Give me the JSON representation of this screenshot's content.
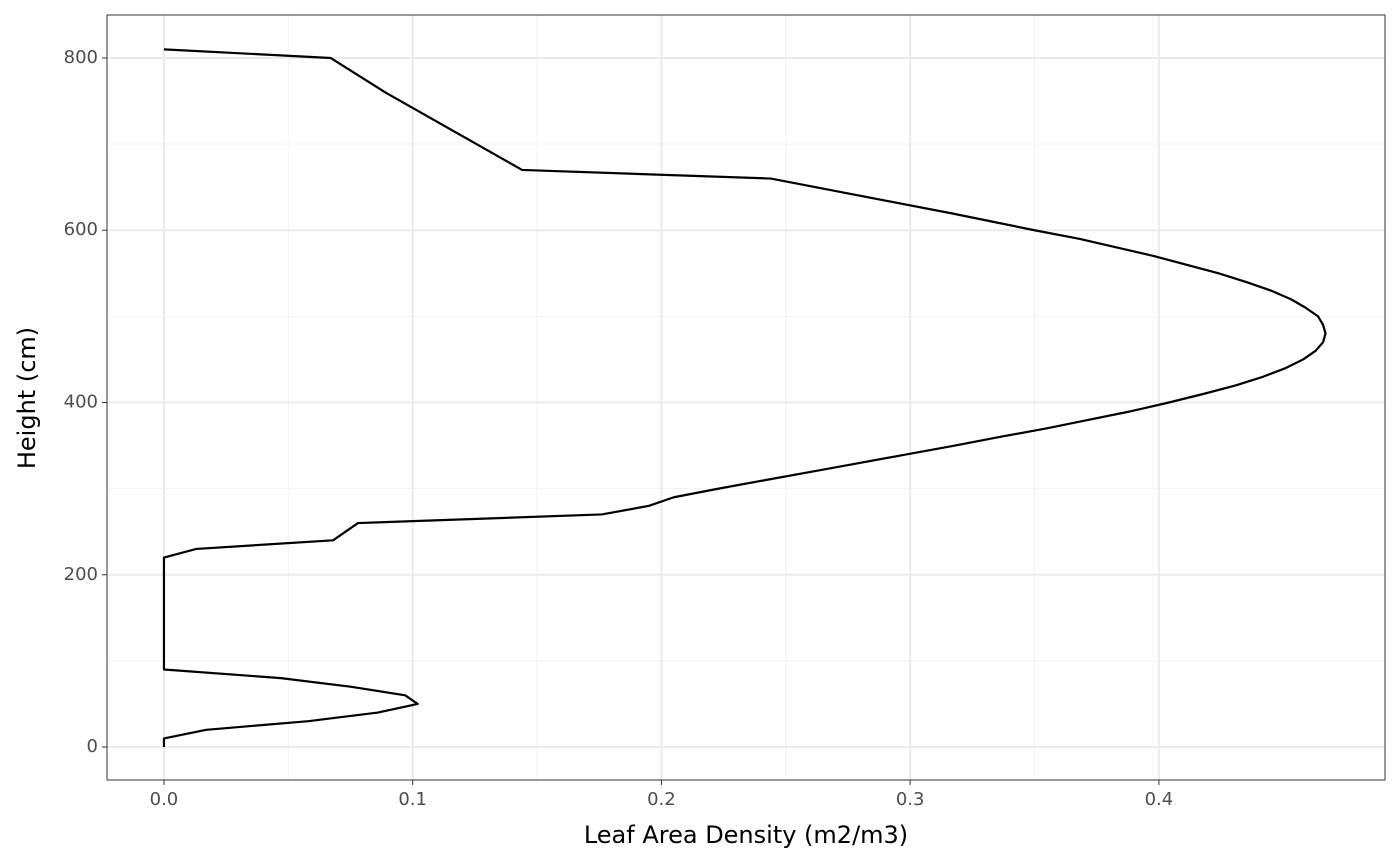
{
  "chart_data": {
    "type": "line",
    "x_label": "Leaf Area Density (m2/m3)",
    "y_label": "Height (cm)",
    "x": [
      0,
      0,
      0.017,
      0.058,
      0.086,
      0.102,
      0.097,
      0.075,
      0.047,
      0,
      0,
      0,
      0,
      0,
      0,
      0,
      0,
      0,
      0,
      0,
      0,
      0,
      0,
      0.013,
      0.068,
      0.078,
      0.176,
      0.195,
      0.205,
      0.223,
      0.242,
      0.261,
      0.28,
      0.299,
      0.318,
      0.336,
      0.355,
      0.372,
      0.389,
      0.404,
      0.418,
      0.431,
      0.442,
      0.451,
      0.458,
      0.463,
      0.466,
      0.467,
      0.466,
      0.464,
      0.459,
      0.453,
      0.445,
      0.435,
      0.424,
      0.411,
      0.398,
      0.383,
      0.368,
      0.35,
      0.333,
      0.316,
      0.298,
      0.28,
      0.262,
      0.244,
      0.144,
      0.089,
      0.067,
      0
    ],
    "values": [
      0,
      10,
      20,
      30,
      40,
      50,
      60,
      70,
      80,
      90,
      100,
      110,
      120,
      130,
      140,
      150,
      160,
      170,
      180,
      190,
      200,
      210,
      220,
      230,
      240,
      260,
      270,
      280,
      290,
      300,
      310,
      320,
      330,
      340,
      350,
      360,
      370,
      380,
      390,
      400,
      410,
      420,
      430,
      440,
      450,
      460,
      470,
      480,
      490,
      500,
      510,
      520,
      530,
      540,
      550,
      560,
      570,
      580,
      590,
      600,
      610,
      620,
      630,
      640,
      650,
      660,
      670,
      760,
      800,
      810
    ],
    "color": "#000000",
    "xlim": [
      -0.0229,
      0.4909
    ],
    "xticks": [
      {
        "value": 0,
        "label": "0.0"
      },
      0.1,
      0.2,
      0.3,
      0.4
    ],
    "ylim": [
      -38.3,
      849.9
    ],
    "yticks": [
      0,
      200,
      400,
      600,
      800
    ],
    "grid": true
  }
}
